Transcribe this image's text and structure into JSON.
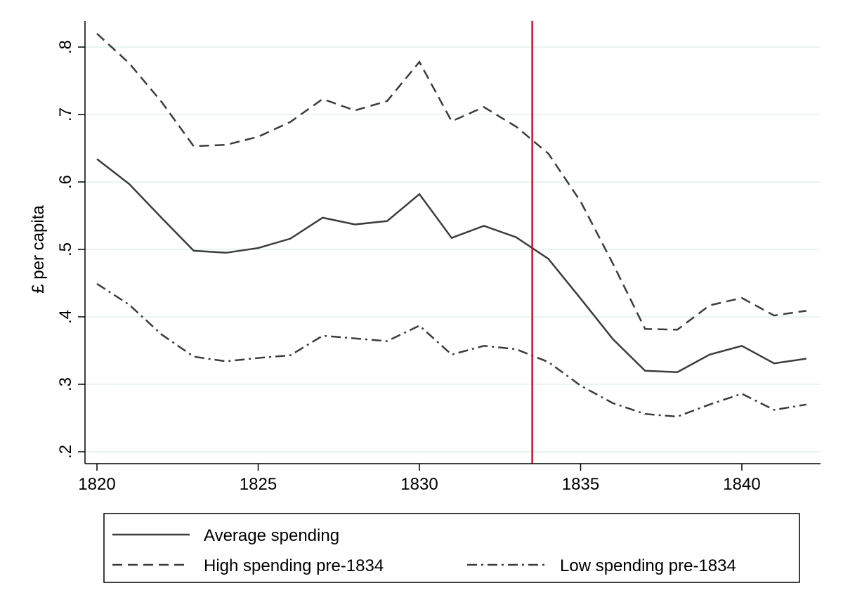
{
  "chart_data": {
    "type": "line",
    "title": "",
    "xlabel": "",
    "ylabel": "£ per capita",
    "xlim": [
      1820,
      1842
    ],
    "ylim": [
      0.2,
      0.8
    ],
    "xticks": [
      1820,
      1825,
      1830,
      1835,
      1840
    ],
    "xtick_labels": [
      "1820",
      "1825",
      "1830",
      "1835",
      "1840"
    ],
    "yticks": [
      0.2,
      0.3,
      0.4,
      0.5,
      0.6,
      0.7,
      0.8
    ],
    "ytick_labels": [
      ".2",
      ".3",
      ".4",
      ".5",
      ".6",
      ".7",
      ".8"
    ],
    "grid": "horizontal",
    "legend_position": "bottom",
    "x": [
      1820,
      1821,
      1822,
      1823,
      1824,
      1825,
      1826,
      1827,
      1828,
      1829,
      1830,
      1831,
      1832,
      1833,
      1834,
      1835,
      1836,
      1837,
      1838,
      1839,
      1840,
      1841,
      1842
    ],
    "series": [
      {
        "name": "Average spending",
        "style": "solid",
        "color": "#3c3c3c",
        "values": [
          0.634,
          0.597,
          0.547,
          0.498,
          0.495,
          0.502,
          0.516,
          0.547,
          0.537,
          0.542,
          0.582,
          0.517,
          0.535,
          0.518,
          0.486,
          0.427,
          0.367,
          0.32,
          0.318,
          0.344,
          0.357,
          0.331,
          0.338
        ]
      },
      {
        "name": "High spending pre-1834",
        "style": "dashed",
        "color": "#3c3c3c",
        "values": [
          0.82,
          0.776,
          0.719,
          0.653,
          0.655,
          0.667,
          0.689,
          0.723,
          0.706,
          0.72,
          0.778,
          0.69,
          0.711,
          0.682,
          0.642,
          0.571,
          0.479,
          0.382,
          0.381,
          0.417,
          0.428,
          0.402,
          0.409
        ]
      },
      {
        "name": "Low spending pre-1834",
        "style": "dashdot",
        "color": "#3c3c3c",
        "values": [
          0.449,
          0.418,
          0.374,
          0.341,
          0.334,
          0.339,
          0.343,
          0.372,
          0.368,
          0.364,
          0.387,
          0.344,
          0.357,
          0.352,
          0.333,
          0.298,
          0.272,
          0.256,
          0.252,
          0.27,
          0.286,
          0.262,
          0.27
        ]
      }
    ],
    "vertical_line": {
      "x": 1833.5,
      "color": "#c8102e"
    },
    "gridline_color": "#eaf2f3"
  }
}
